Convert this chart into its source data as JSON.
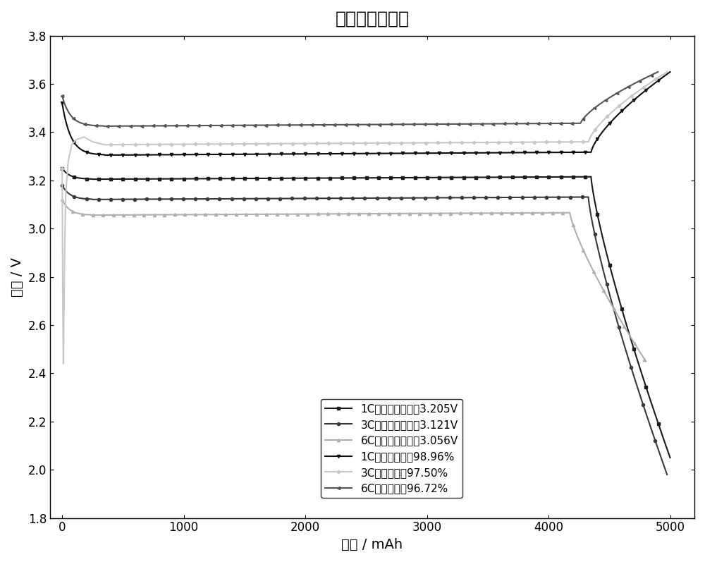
{
  "title": "倍率充放电曲线",
  "xlabel": "容量 / mAh",
  "ylabel": "电压 / V",
  "xlim": [
    -100,
    5200
  ],
  "ylim": [
    1.8,
    3.8
  ],
  "yticks": [
    1.8,
    2.0,
    2.2,
    2.4,
    2.6,
    2.8,
    3.0,
    3.2,
    3.4,
    3.6,
    3.8
  ],
  "xticks": [
    0,
    1000,
    2000,
    3000,
    4000,
    5000
  ],
  "legend_labels": [
    "1C放电中值电压：3.205V",
    "3C放电中值电压：3.121V",
    "6C放电中值电压：3.056V",
    "1C充电恒流比：98.96%",
    "3C充电恒流比97.50%",
    "6C充电恒流比96.72%"
  ],
  "d1C_color": "#1a1a1a",
  "d3C_color": "#3a3a3a",
  "d6C_color": "#b0b0b0",
  "c1C_color": "#0d0d0d",
  "c3C_color": "#c8c8c8",
  "c6C_color": "#555555",
  "background_color": "#ffffff",
  "plot_bg_color": "#ffffff",
  "title_fontsize": 18,
  "label_fontsize": 14,
  "legend_fontsize": 11,
  "tick_fontsize": 12,
  "linewidth": 1.5,
  "markersize": 3
}
